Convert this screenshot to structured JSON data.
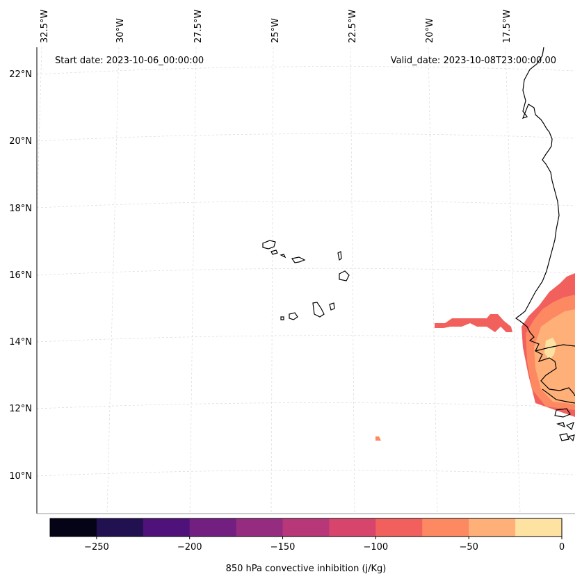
{
  "map": {
    "start_date": "Start date: 2023-10-06_00:00:00",
    "valid_date": "Valid_date: 2023-10-08T23:00:00.00",
    "lon_labels": [
      "32.5°W",
      "30°W",
      "27.5°W",
      "25°W",
      "22.5°W",
      "20°W",
      "17.5°W"
    ],
    "lat_labels": [
      "22°N",
      "20°N",
      "18°N",
      "16°N",
      "14°N",
      "12°N",
      "10°N"
    ],
    "field_name": "850 hPa convective inhibition",
    "projection": "regional conic with graticule",
    "region": "Cape Verde islands and West African coast (Senegal, Gambia, Guinea-Bissau)"
  },
  "colorbar": {
    "label": "850 hPa convective inhibition (j/Kg)",
    "tick_labels": [
      "−250",
      "−200",
      "−150",
      "−100",
      "−50",
      "0"
    ],
    "ticks": [
      -250,
      -200,
      -150,
      -100,
      -50,
      0
    ],
    "range": [
      -275,
      0
    ],
    "bins": [
      -275,
      -250,
      -225,
      -200,
      -175,
      -150,
      -125,
      -100,
      -75,
      -50,
      -25,
      0
    ],
    "colors": [
      "#050416",
      "#221150",
      "#4f127b",
      "#721f81",
      "#952c80",
      "#b73779",
      "#d8456c",
      "#f1605d",
      "#fc8961",
      "#feb078",
      "#fde2a2"
    ],
    "scale": "magma"
  },
  "field_colors": {
    "band_minus_100_to_minus_75": "#f1605d",
    "band_minus_75_to_minus_50": "#fc8961",
    "band_minus_50_to_minus_25": "#feb078",
    "band_minus_25_to_0": "#fde2a2",
    "coastline": "#000000",
    "gridline": "#d9d9d9"
  }
}
